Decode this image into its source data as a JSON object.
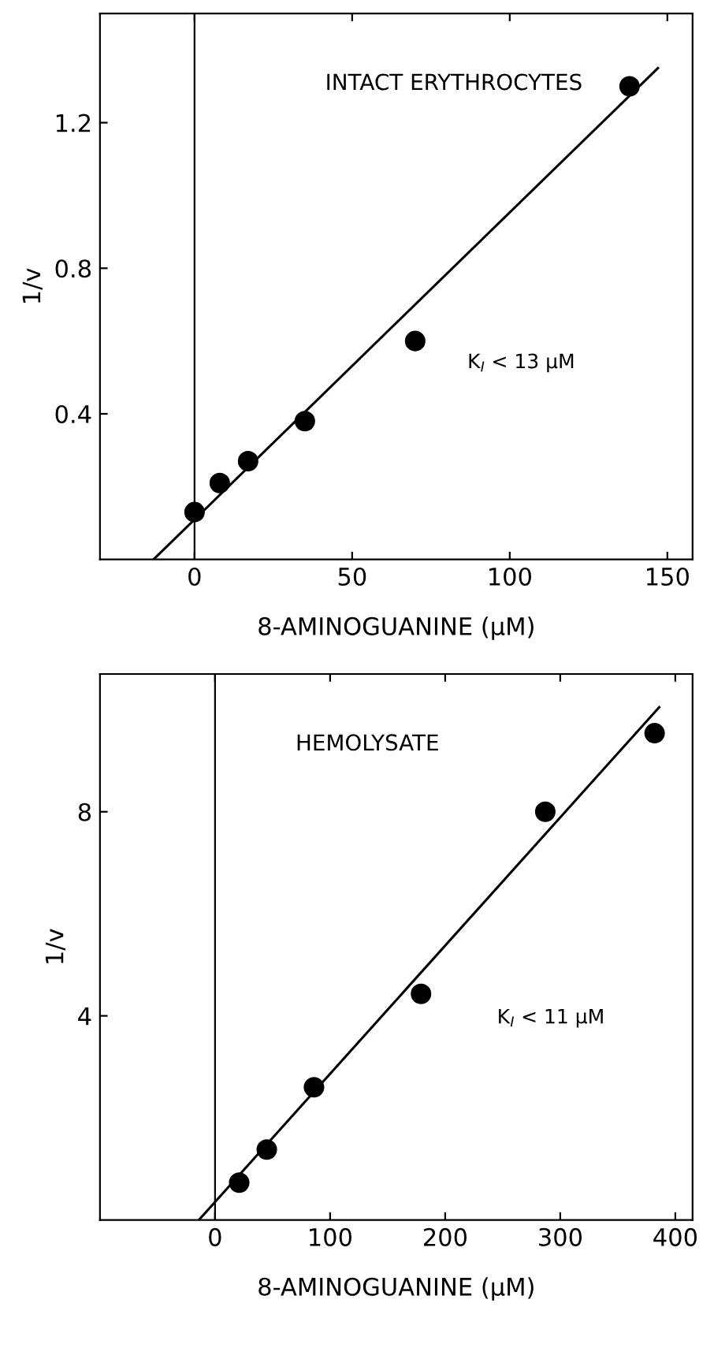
{
  "chart_data": [
    {
      "type": "scatter",
      "xlabel": "8-AMINOGUANINE (μM)",
      "ylabel": "1/v",
      "annotations": [
        "INTACT ERYTHROCYTES",
        "K$_{I}$ < 13 μM"
      ],
      "xlim": [
        -30,
        158
      ],
      "ylim": [
        0,
        1.5
      ],
      "xticks": [
        0,
        50,
        100,
        150
      ],
      "yticks": [
        0.4,
        0.8,
        1.2
      ],
      "ref_lines": [
        {
          "axis": "x",
          "value": 0,
          "color": "#000000"
        }
      ],
      "grid": false,
      "legend": false,
      "series": [
        {
          "color": "#000000",
          "marker": "circle",
          "x": [
            0,
            8,
            17,
            35,
            70,
            138
          ],
          "values": [
            0.13,
            0.21,
            0.27,
            0.38,
            0.6,
            1.3
          ]
        },
        {
          "type": "line",
          "color": "#000000",
          "marker": "none",
          "line_style": "solid",
          "x": [
            -13,
            147
          ],
          "values": [
            0,
            1.35
          ]
        }
      ]
    },
    {
      "type": "scatter",
      "xlabel": "8-AMINOGUANINE (μM)",
      "ylabel": "1/v",
      "annotations": [
        "HEMOLYSATE",
        "K$_{I}$ < 11 μM"
      ],
      "xlim": [
        -100,
        415
      ],
      "ylim": [
        0,
        10.7
      ],
      "xticks": [
        0,
        100,
        200,
        300,
        400
      ],
      "yticks": [
        4,
        8
      ],
      "ref_lines": [
        {
          "axis": "x",
          "value": 0,
          "color": "#000000"
        }
      ],
      "grid": false,
      "legend": false,
      "series": [
        {
          "color": "#000000",
          "marker": "circle",
          "x": [
            21,
            45,
            86,
            179,
            287,
            382
          ],
          "values": [
            0.73,
            1.38,
            2.6,
            4.43,
            8.0,
            9.54
          ]
        },
        {
          "type": "line",
          "color": "#000000",
          "marker": "none",
          "line_style": "solid",
          "x": [
            -14,
            386
          ],
          "values": [
            0,
            10.05
          ]
        }
      ]
    }
  ]
}
